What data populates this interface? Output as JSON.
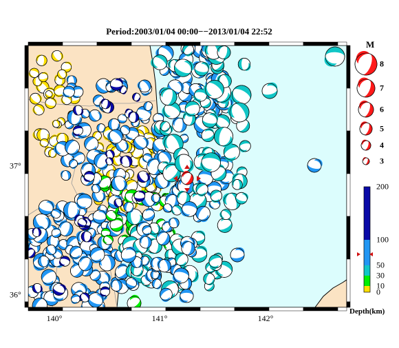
{
  "title": "Period:2003/01/04 00:00−−2013/01/04 22:52",
  "colors": {
    "land": "#fbe3c3",
    "sea": "#dcfdfd",
    "depth_0_10": "#ffe000",
    "depth_10_30": "#00ee00",
    "depth_30_50": "#10c6c6",
    "depth_50_100": "#2196f3",
    "depth_100_200": "#0a0aa8",
    "mainshock": "#ff1a1a"
  },
  "map": {
    "lon_labels": [
      "140°",
      "141°",
      "142°"
    ],
    "lat_labels": [
      "37°",
      "36°"
    ]
  },
  "legend": {
    "magnitude_title": "M",
    "magnitudes": [
      "8",
      "7",
      "6",
      "5",
      "4",
      "3"
    ],
    "depth_title": "Depth(km)",
    "depth_ticks": [
      "200",
      "100",
      "50",
      "30",
      "10",
      "0"
    ]
  }
}
